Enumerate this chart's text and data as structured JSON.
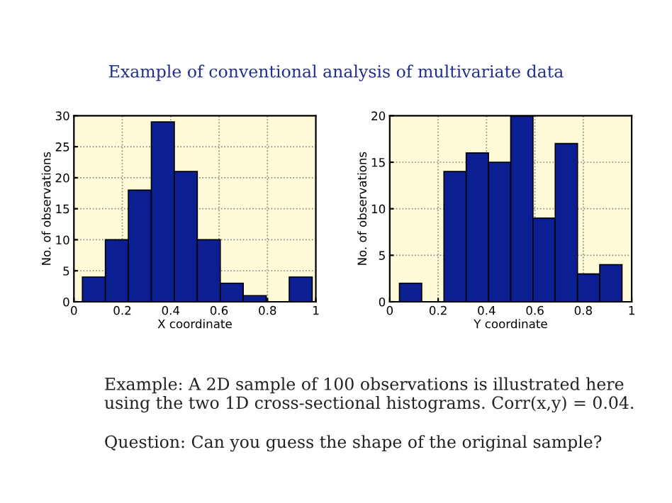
{
  "chart_data": [
    {
      "type": "histogram",
      "title": "Example of conventional analysis of multivariate data",
      "xlabel": "X coordinate",
      "ylabel": "No. of observations",
      "bins": [
        0.035,
        0.13,
        0.225,
        0.32,
        0.415,
        0.51,
        0.605,
        0.7,
        0.795,
        0.89,
        0.985
      ],
      "values": [
        4,
        10,
        18,
        29,
        21,
        10,
        3,
        1,
        0,
        4
      ],
      "color": "#0b1f93",
      "xlim": [
        0,
        1
      ],
      "xticks": [
        0,
        0.2,
        0.4,
        0.6,
        0.8,
        1
      ],
      "ylim": [
        0,
        30
      ],
      "yticks": [
        0,
        5,
        10,
        15,
        20,
        25,
        30
      ],
      "grid": true
    },
    {
      "type": "histogram",
      "xlabel": "Y coordinate",
      "ylabel": "No. of observations",
      "bins": [
        0.04,
        0.132,
        0.224,
        0.316,
        0.408,
        0.5,
        0.592,
        0.684,
        0.776,
        0.868,
        0.96
      ],
      "values": [
        2,
        0,
        14,
        16,
        15,
        20,
        9,
        17,
        3,
        4
      ],
      "color": "#0b1f93",
      "xlim": [
        0,
        1
      ],
      "xticks": [
        0,
        0.2,
        0.4,
        0.6,
        0.8,
        1
      ],
      "ylim": [
        0,
        20
      ],
      "yticks": [
        0,
        5,
        10,
        15,
        20
      ],
      "grid": true,
      "annotations": [
        "Example: A 2D sample of 100 observations is illustrated here using the two 1D cross-sectional histograms. Corr(x,y) = 0.04.",
        "Question: Can you guess the shape of the original sample?"
      ]
    }
  ]
}
